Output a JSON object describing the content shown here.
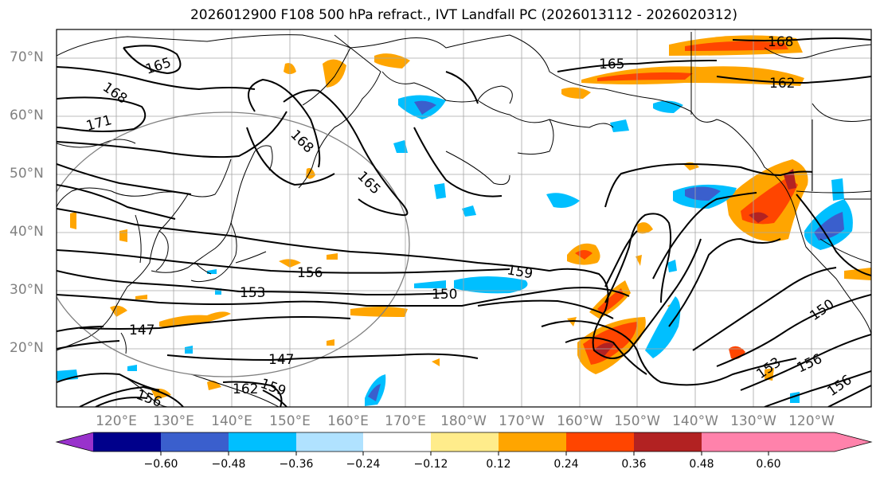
{
  "title": "2026012900 F108 500 hPa refract., IVT Landfall PC (2026013112 - 2026020312)",
  "lat_labels": [
    "70°N",
    "60°N",
    "50°N",
    "40°N",
    "30°N",
    "20°N"
  ],
  "lon_labels": [
    "120°E",
    "130°E",
    "140°E",
    "150°E",
    "160°E",
    "170°E",
    "180°W",
    "170°W",
    "160°W",
    "150°W",
    "140°W",
    "130°W",
    "120°W"
  ],
  "contour_labels": {
    "c165a": "165",
    "c168a": "168",
    "c171": "171",
    "c168b": "168",
    "c165b": "165",
    "c165c": "165",
    "c168c": "168",
    "c162a": "162",
    "c156a": "156",
    "c153a": "153",
    "c159a": "159",
    "c150a": "150",
    "c147a": "147",
    "c147b": "147",
    "c162b": "162",
    "c159b": "159",
    "c156b": "156",
    "c153b": "153",
    "c150b": "150",
    "c156c": "156",
    "c156d": "156"
  },
  "colorbar": {
    "labels": [
      "−0.60",
      "−0.48",
      "−0.36",
      "−0.24",
      "−0.12",
      "0.12",
      "0.24",
      "0.36",
      "0.48",
      "0.60"
    ],
    "colors": [
      "#9932cc",
      "#00008b",
      "#3a5fcd",
      "#00bfff",
      "#b0e2ff",
      "#ffffff",
      "#ffec8b",
      "#ffa500",
      "#ff4500",
      "#b22222",
      "#ff82ab"
    ]
  }
}
